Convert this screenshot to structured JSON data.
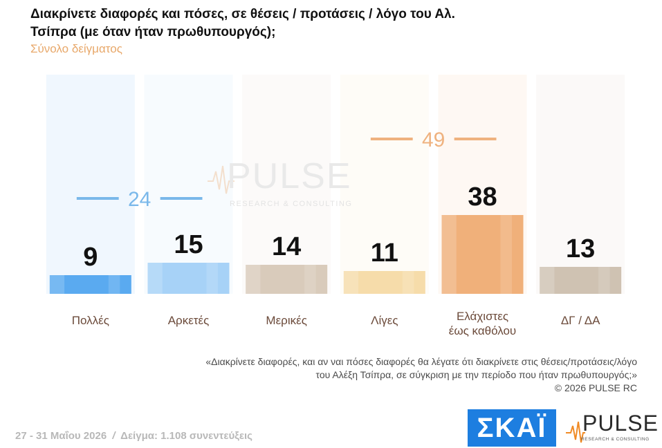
{
  "title": "Διακρίνετε διαφορές και πόσες, σε θέσεις / προτάσεις / λόγο του Αλ. Τσίπρα (με όταν ήταν πρωθυπουργός);",
  "subtitle": "Σύνολο δείγματος",
  "note": {
    "line1": "«Διακρίνετε διαφορές, και αν ναι πόσες διαφορές θα λέγατε ότι διακρίνετε στις θέσεις/προτάσεις/λόγο",
    "line2": "του Αλέξη Τσίπρα, σε σύγκριση με την περίοδο που ήταν πρωθυπουργός;»",
    "copyright": "©  2026  PULSE RC"
  },
  "footer": {
    "dates": "27 - 31  Μαΐου 2026",
    "separator": "/",
    "sample": "Δείγμα:  1.108 συνεντεύξεις"
  },
  "logos": {
    "skai_text": "ΣΚΑΪ",
    "pulse_word": "PULSE",
    "pulse_tagline": "RESEARCH & CONSULTING",
    "watermark_word": "PULSE",
    "watermark_tagline": "RESEARCH & CONSULTING"
  },
  "colors": {
    "blue_group": "#5aaaf0",
    "orange_group": "#f0b07a"
  },
  "chart_data": {
    "type": "bar",
    "categories": [
      "Πολλές",
      "Αρκετές",
      "Μερικές",
      "Λίγες",
      "Ελάχιστες έως καθόλου",
      "ΔΓ / ΔΑ"
    ],
    "category_lines": [
      [
        "Πολλές"
      ],
      [
        "Αρκετές"
      ],
      [
        "Μερικές"
      ],
      [
        "Λίγες"
      ],
      [
        "Ελάχιστες",
        "έως καθόλου"
      ],
      [
        "ΔΓ / ΔΑ"
      ]
    ],
    "values": [
      9,
      15,
      14,
      11,
      38,
      13
    ],
    "value_labels": [
      "9",
      "15",
      "14",
      "11",
      "38",
      "13"
    ],
    "bar_colors": [
      "#5aaaf0",
      "#a7d2f7",
      "#d9cbbb",
      "#f6dcaa",
      "#f0b07a",
      "#cfc2b2"
    ],
    "ylim": [
      0,
      100
    ],
    "groups": [
      {
        "label": "24",
        "value": 24,
        "from": 0,
        "to": 1,
        "color": "#7ab8ea"
      },
      {
        "label": "49",
        "value": 49,
        "from": 3,
        "to": 4,
        "color": "#efb27f"
      }
    ],
    "xlabel": "",
    "ylabel": "",
    "grid": false
  }
}
